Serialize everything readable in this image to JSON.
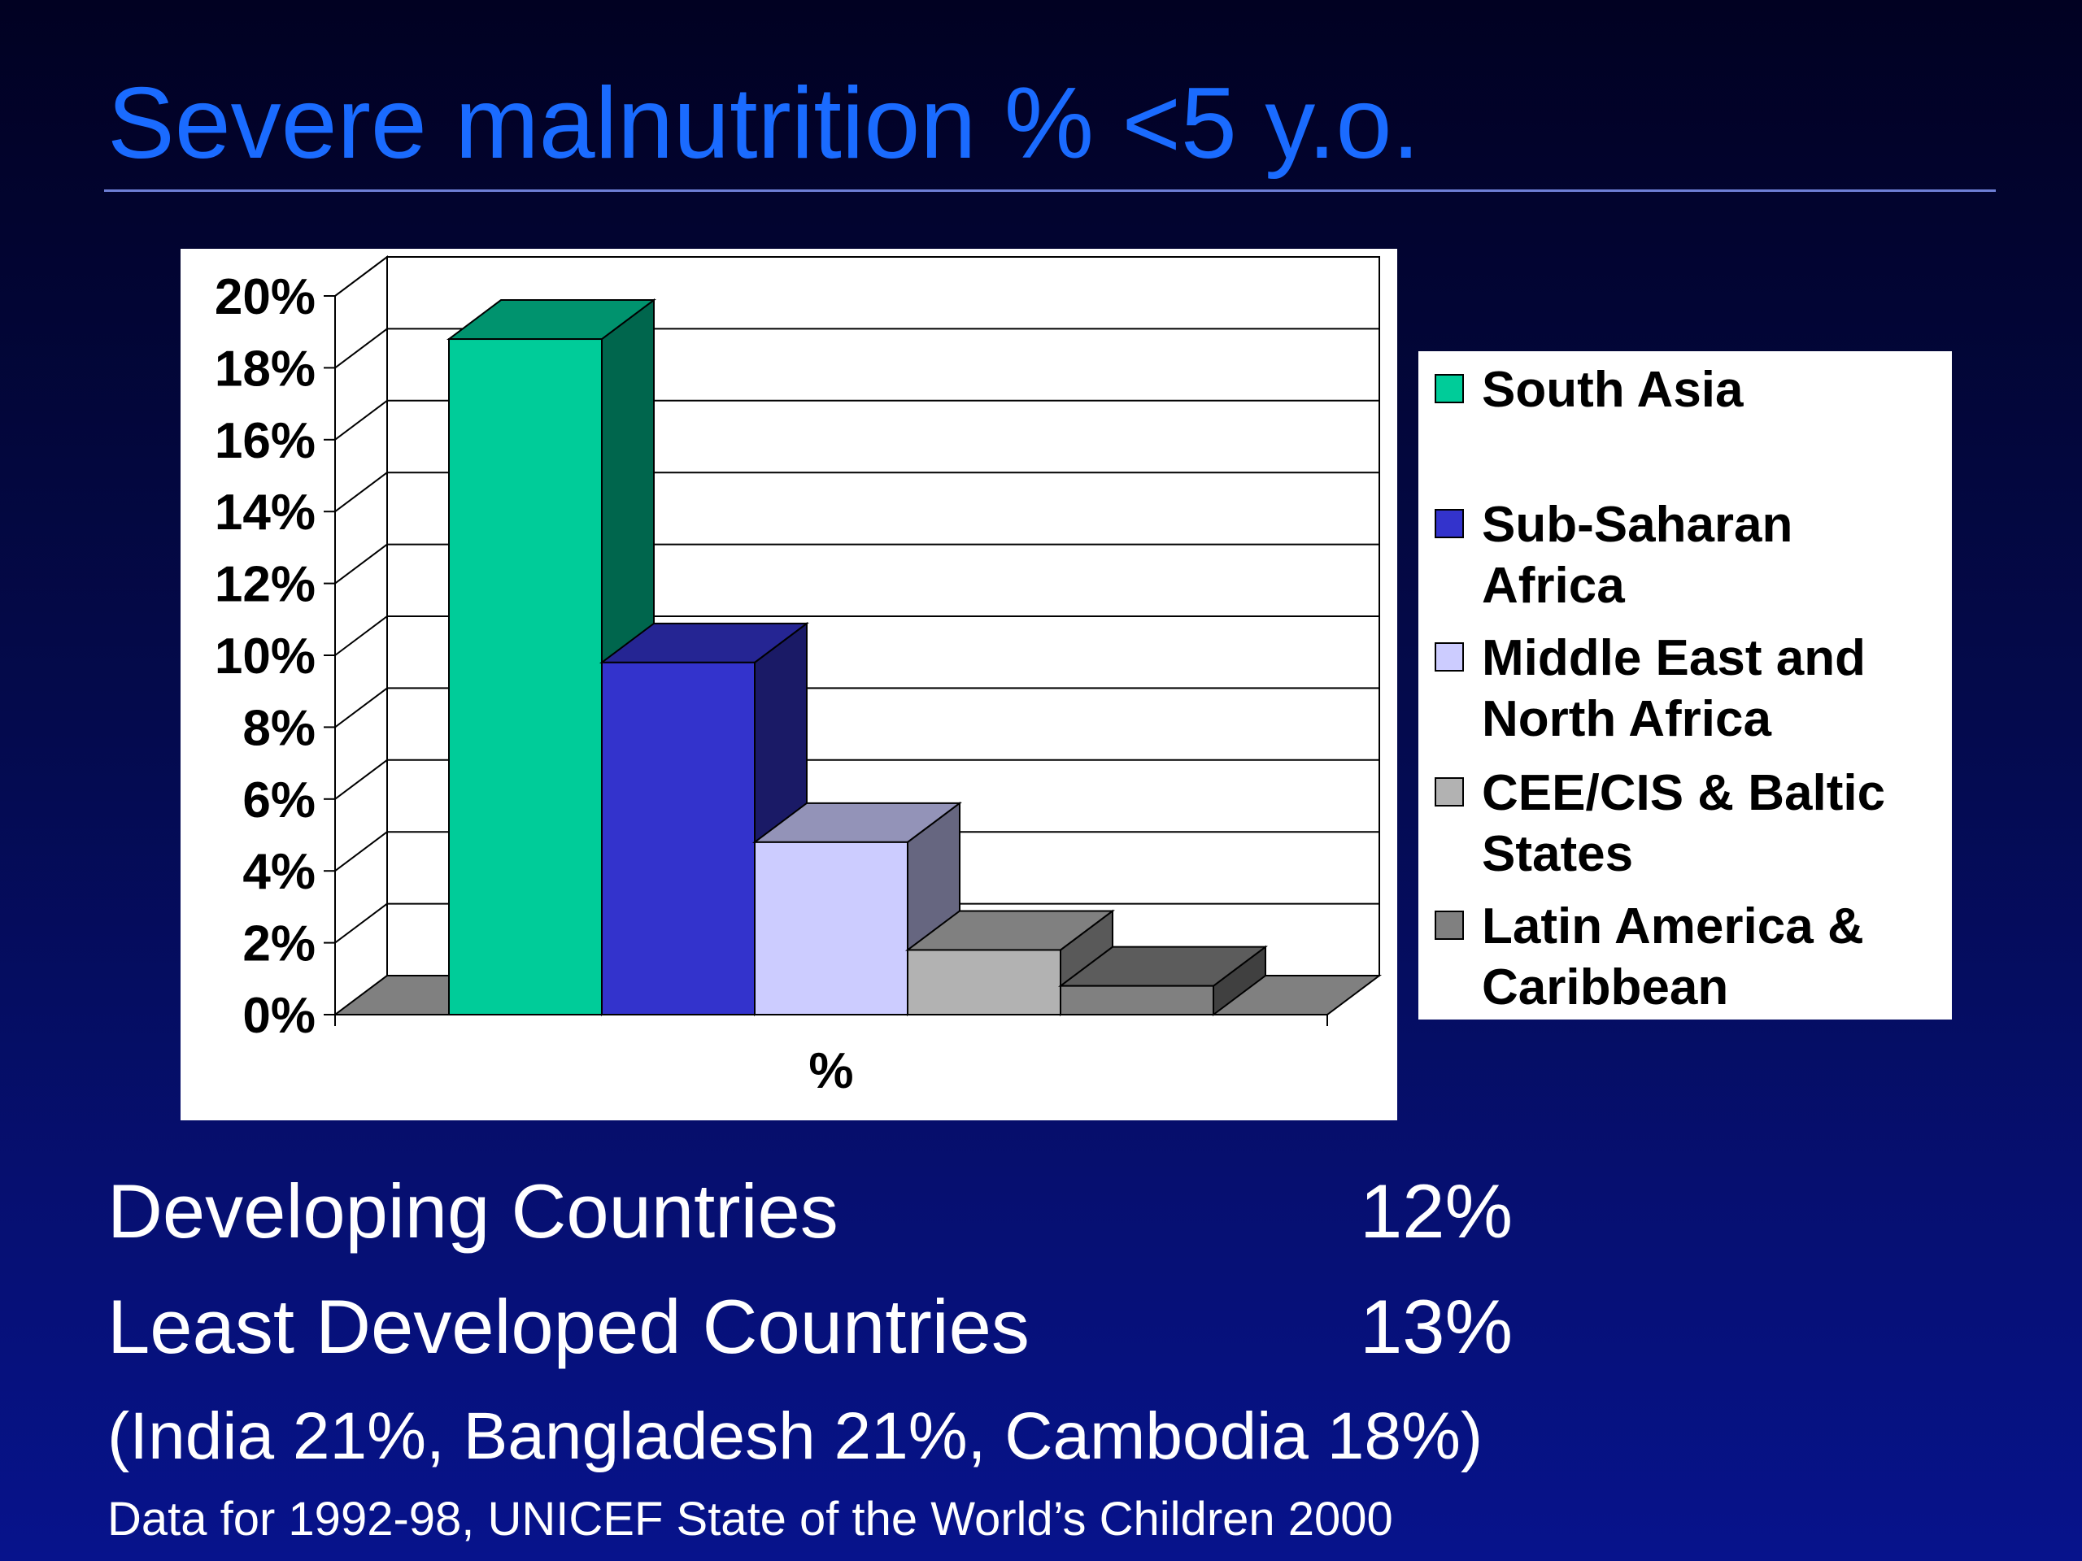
{
  "slide": {
    "title": "Severe malnutrition % <5 y.o."
  },
  "stats": [
    {
      "label": "Developing Countries",
      "value": "12%"
    },
    {
      "label": "Least Developed Countries",
      "value": "13%"
    }
  ],
  "note": "(India 21%, Bangladesh 21%, Cambodia 18%)",
  "source": "Data for 1992-98, UNICEF State of the World’s Children 2000",
  "chart_data": {
    "type": "bar",
    "style": "3d-column",
    "categories": [
      "%"
    ],
    "xlabel": "%",
    "ylabel": "",
    "ylim": [
      0,
      20
    ],
    "yticks": [
      "0%",
      "2%",
      "4%",
      "6%",
      "8%",
      "10%",
      "12%",
      "14%",
      "16%",
      "18%",
      "20%"
    ],
    "grid": true,
    "legend_position": "right",
    "series": [
      {
        "name": "South Asia",
        "values": [
          18.8
        ],
        "color": "#00cc99"
      },
      {
        "name": "Sub-Saharan Africa",
        "values": [
          9.8
        ],
        "color": "#3333cc"
      },
      {
        "name": "Middle East and North Africa",
        "values": [
          4.8
        ],
        "color": "#ccccff"
      },
      {
        "name": "CEE/CIS & Baltic States",
        "values": [
          1.8
        ],
        "color": "#b2b2b2"
      },
      {
        "name": "Latin America & Caribbean",
        "values": [
          0.8
        ],
        "color": "#808080"
      }
    ]
  },
  "legend": [
    {
      "lines": [
        "South Asia"
      ],
      "color": "#00cc99"
    },
    {
      "lines": [
        "Sub-Saharan Africa"
      ],
      "color": "#3333cc"
    },
    {
      "lines": [
        "Middle East and",
        "North Africa"
      ],
      "color": "#ccccff"
    },
    {
      "lines": [
        "CEE/CIS & Baltic",
        "States"
      ],
      "color": "#b2b2b2"
    },
    {
      "lines": [
        "Latin America &",
        "Caribbean"
      ],
      "color": "#808080"
    }
  ]
}
